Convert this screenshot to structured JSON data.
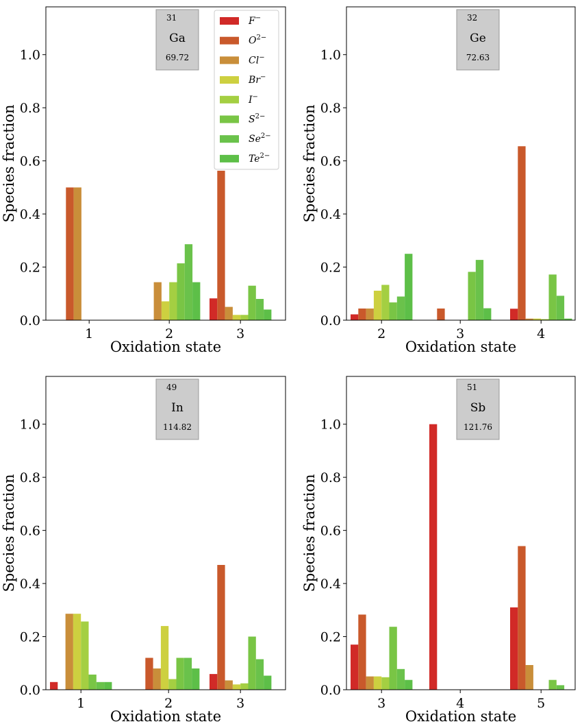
{
  "colors": {
    "species": [
      "#d12a27",
      "#c9592b",
      "#c98e3a",
      "#cdd040",
      "#a4cf42",
      "#79c545",
      "#6ac24b",
      "#5dbf48"
    ],
    "element_box_fill": "#cccccc",
    "element_box_stroke": "#999999"
  },
  "chart_data": [
    {
      "type": "bar",
      "element": {
        "symbol": "Ga",
        "number": "31",
        "mass": "69.72"
      },
      "categories": [
        "1",
        "2",
        "3"
      ],
      "xlabel": "Oxidation state",
      "ylabel": "Species fraction",
      "ylim": [
        0,
        1.18
      ],
      "yticks": [
        "0.0",
        "0.2",
        "0.4",
        "0.6",
        "0.8",
        "1.0"
      ],
      "legend": {
        "placement": "top-right",
        "entries": [
          {
            "base": "F",
            "sup": "−"
          },
          {
            "base": "O",
            "sup": "2−"
          },
          {
            "base": "Cl",
            "sup": "−"
          },
          {
            "base": "Br",
            "sup": "−"
          },
          {
            "base": "I",
            "sup": "−"
          },
          {
            "base": "S",
            "sup": "2−"
          },
          {
            "base": "Se",
            "sup": "2−"
          },
          {
            "base": "Te",
            "sup": "2−"
          }
        ]
      },
      "series": [
        {
          "name": "F−",
          "values": [
            0,
            0,
            0.082
          ]
        },
        {
          "name": "O2−",
          "values": [
            0.5,
            0,
            0.563
          ]
        },
        {
          "name": "Cl−",
          "values": [
            0.5,
            0.143,
            0.05
          ]
        },
        {
          "name": "Br−",
          "values": [
            0,
            0.071,
            0.02
          ]
        },
        {
          "name": "I−",
          "values": [
            0,
            0.143,
            0.02
          ]
        },
        {
          "name": "S2−",
          "values": [
            0,
            0.214,
            0.13
          ]
        },
        {
          "name": "Se2−",
          "values": [
            0,
            0.286,
            0.08
          ]
        },
        {
          "name": "Te2−",
          "values": [
            0,
            0.143,
            0.04
          ]
        }
      ]
    },
    {
      "type": "bar",
      "element": {
        "symbol": "Ge",
        "number": "32",
        "mass": "72.63"
      },
      "categories": [
        "2",
        "3",
        "4"
      ],
      "xlabel": "Oxidation state",
      "ylabel": "Species fraction",
      "ylim": [
        0,
        1.18
      ],
      "yticks": [
        "0.0",
        "0.2",
        "0.4",
        "0.6",
        "0.8",
        "1.0"
      ],
      "series": [
        {
          "name": "F−",
          "values": [
            0.022,
            0,
            0.043
          ]
        },
        {
          "name": "O2−",
          "values": [
            0.044,
            0.044,
            0.655
          ]
        },
        {
          "name": "Cl−",
          "values": [
            0.044,
            0,
            0.006
          ]
        },
        {
          "name": "Br−",
          "values": [
            0.111,
            0,
            0.006
          ]
        },
        {
          "name": "I−",
          "values": [
            0.133,
            0,
            0.004
          ]
        },
        {
          "name": "S2−",
          "values": [
            0.067,
            0.182,
            0.172
          ]
        },
        {
          "name": "Se2−",
          "values": [
            0.089,
            0.227,
            0.092
          ]
        },
        {
          "name": "Te2−",
          "values": [
            0.25,
            0.045,
            0.006
          ]
        }
      ]
    },
    {
      "type": "bar",
      "element": {
        "symbol": "In",
        "number": "49",
        "mass": "114.82"
      },
      "categories": [
        "1",
        "2",
        "3"
      ],
      "xlabel": "Oxidation state",
      "ylabel": "Species fraction",
      "ylim": [
        0,
        1.18
      ],
      "yticks": [
        "0.0",
        "0.2",
        "0.4",
        "0.6",
        "0.8",
        "1.0"
      ],
      "series": [
        {
          "name": "F−",
          "values": [
            0.029,
            0,
            0.059
          ]
        },
        {
          "name": "O2−",
          "values": [
            0,
            0.12,
            0.47
          ]
        },
        {
          "name": "Cl−",
          "values": [
            0.286,
            0.08,
            0.035
          ]
        },
        {
          "name": "Br−",
          "values": [
            0.286,
            0.24,
            0.02
          ]
        },
        {
          "name": "I−",
          "values": [
            0.257,
            0.04,
            0.024
          ]
        },
        {
          "name": "S2−",
          "values": [
            0.057,
            0.12,
            0.2
          ]
        },
        {
          "name": "Se2−",
          "values": [
            0.029,
            0.12,
            0.115
          ]
        },
        {
          "name": "Te2−",
          "values": [
            0.029,
            0.08,
            0.053
          ]
        }
      ]
    },
    {
      "type": "bar",
      "element": {
        "symbol": "Sb",
        "number": "51",
        "mass": "121.76"
      },
      "categories": [
        "3",
        "4",
        "5"
      ],
      "xlabel": "Oxidation state",
      "ylabel": "Species fraction",
      "ylim": [
        0,
        1.18
      ],
      "yticks": [
        "0.0",
        "0.2",
        "0.4",
        "0.6",
        "0.8",
        "1.0"
      ],
      "series": [
        {
          "name": "F−",
          "values": [
            0.17,
            1.0,
            0.31
          ]
        },
        {
          "name": "O2−",
          "values": [
            0.283,
            0,
            0.541
          ]
        },
        {
          "name": "Cl−",
          "values": [
            0.05,
            0,
            0.093
          ]
        },
        {
          "name": "Br−",
          "values": [
            0.05,
            0,
            0
          ]
        },
        {
          "name": "I−",
          "values": [
            0.047,
            0,
            0
          ]
        },
        {
          "name": "S2−",
          "values": [
            0.237,
            0,
            0.037
          ]
        },
        {
          "name": "Se2−",
          "values": [
            0.078,
            0,
            0.017
          ]
        },
        {
          "name": "Te2−",
          "values": [
            0.037,
            0,
            0
          ]
        }
      ]
    }
  ]
}
